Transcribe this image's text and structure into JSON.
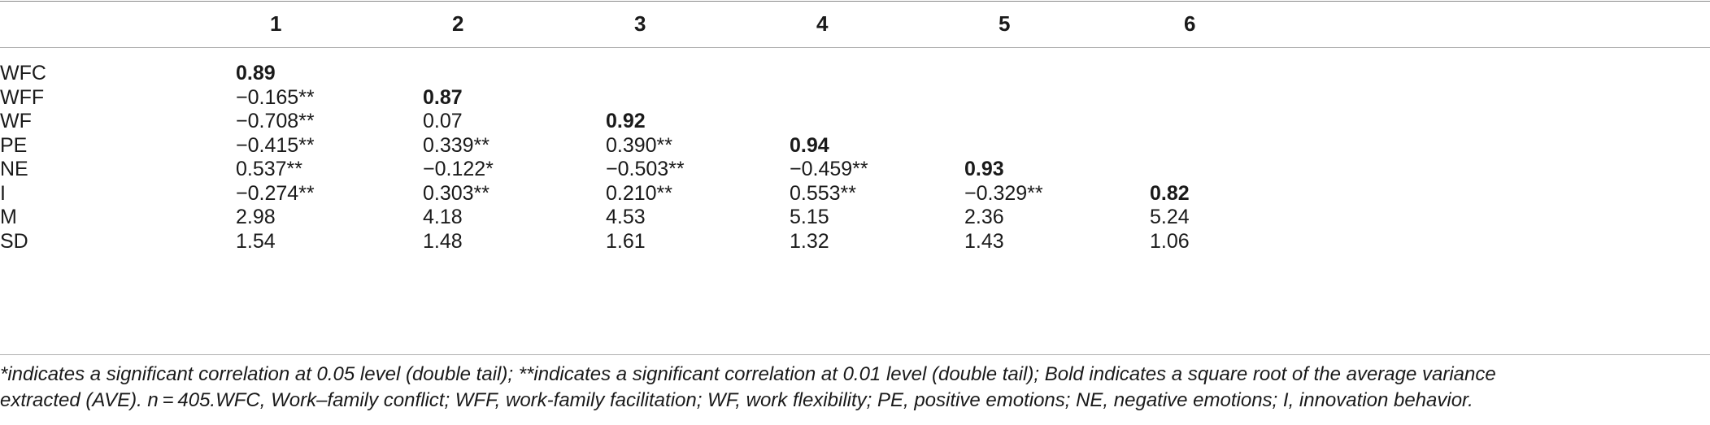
{
  "table": {
    "columns": [
      "1",
      "2",
      "3",
      "4",
      "5",
      "6"
    ],
    "rows": [
      {
        "label": "WFC",
        "cells": [
          "0.89",
          "",
          "",
          "",
          "",
          ""
        ],
        "bold_index": 0
      },
      {
        "label": "WFF",
        "cells": [
          "−0.165**",
          "0.87",
          "",
          "",
          "",
          ""
        ],
        "bold_index": 1
      },
      {
        "label": "WF",
        "cells": [
          "−0.708**",
          "0.07",
          "0.92",
          "",
          "",
          ""
        ],
        "bold_index": 2
      },
      {
        "label": "PE",
        "cells": [
          "−0.415**",
          "0.339**",
          "0.390**",
          "0.94",
          "",
          ""
        ],
        "bold_index": 3
      },
      {
        "label": "NE",
        "cells": [
          "0.537**",
          "−0.122*",
          "−0.503**",
          "−0.459**",
          "0.93",
          ""
        ],
        "bold_index": 4
      },
      {
        "label": "I",
        "cells": [
          "−0.274**",
          "0.303**",
          "0.210**",
          "0.553**",
          "−0.329**",
          "0.82"
        ],
        "bold_index": 5
      },
      {
        "label": "M",
        "cells": [
          "2.98",
          "4.18",
          "4.53",
          "5.15",
          "2.36",
          "5.24"
        ],
        "bold_index": -1
      },
      {
        "label": "SD",
        "cells": [
          "1.54",
          "1.48",
          "1.61",
          "1.32",
          "1.43",
          "1.06"
        ],
        "bold_index": -1
      }
    ]
  },
  "notes": {
    "line1": "*indicates a significant correlation at 0.05 level (double tail); **indicates a significant correlation at 0.01 level (double tail); Bold indicates a square root of the average variance",
    "line2": "extracted (AVE). n = 405.WFC, Work–family conflict; WFF, work-family facilitation; WF, work flexibility; PE, positive emotions; NE, negative emotions; I, innovation behavior."
  }
}
